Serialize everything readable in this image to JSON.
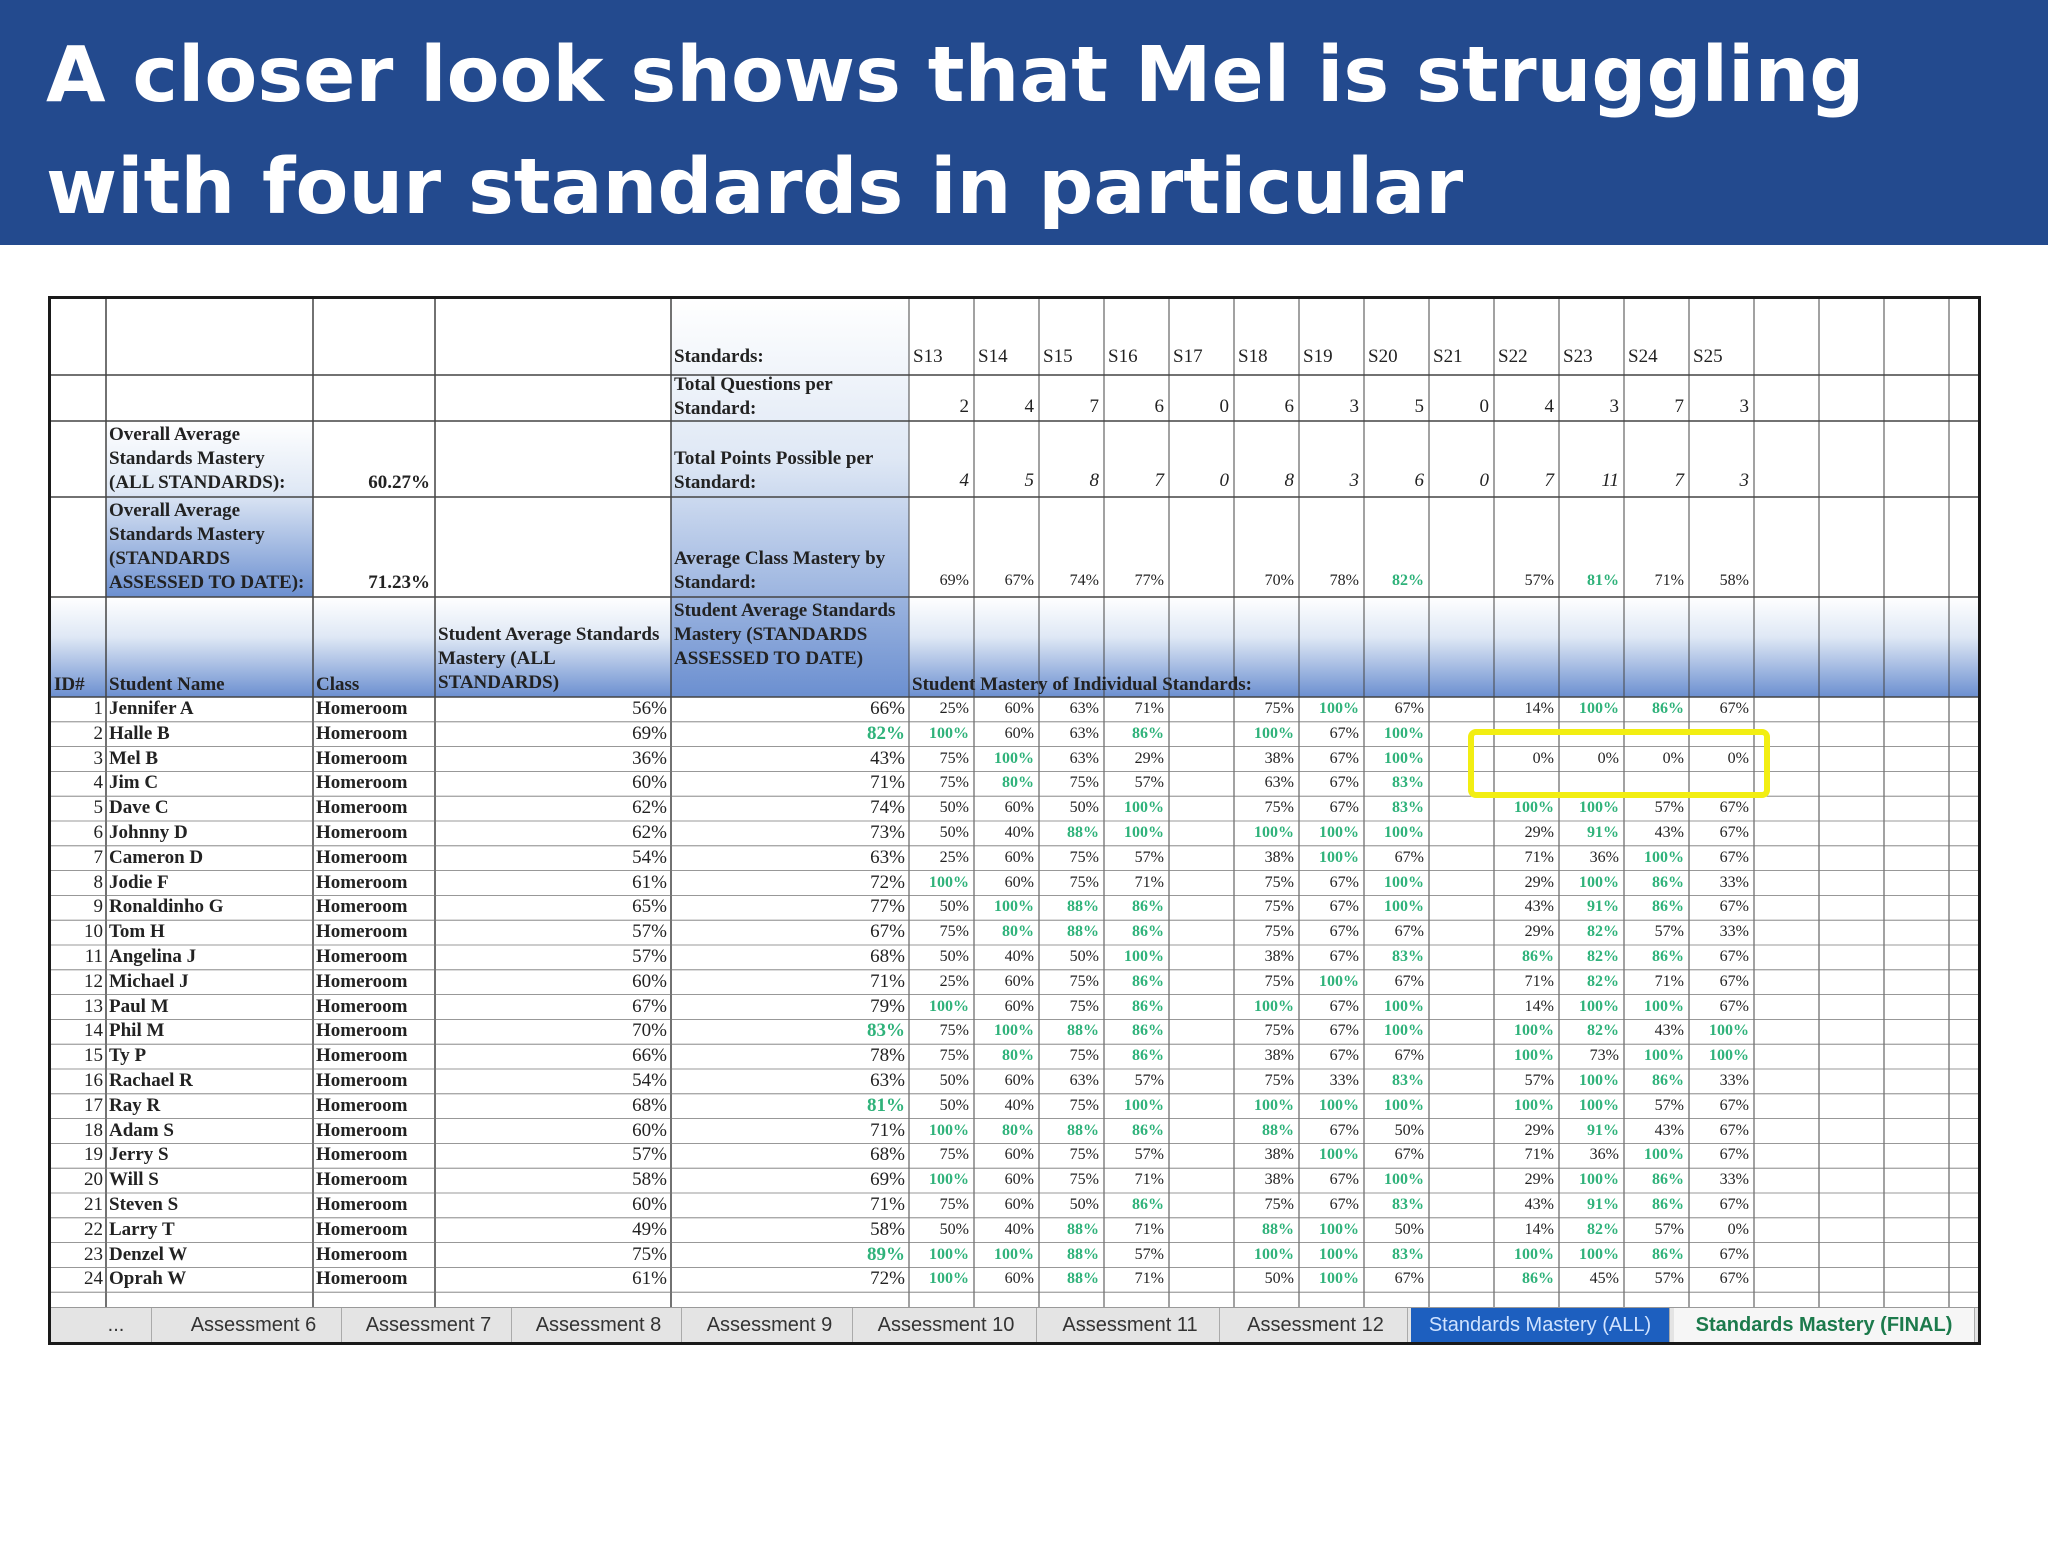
{
  "banner": {
    "title": "A closer look shows that Mel is struggling with four standards in particular"
  },
  "sheet": {
    "summary": {
      "overall_all_label": "Overall Average Standards Mastery (ALL STANDARDS):",
      "overall_all_value": "60.27%",
      "overall_date_label": "Overall Average Standards Mastery (STANDARDS ASSESSED TO DATE):",
      "overall_date_value": "71.23%"
    },
    "row_labels": {
      "standards": "Standards:",
      "total_questions": "Total Questions per Standard:",
      "total_points": "Total Points Possible per Standard:",
      "avg_class": "Average Class Mastery by Standard:"
    },
    "standards": [
      "S13",
      "S14",
      "S15",
      "S16",
      "S17",
      "S18",
      "S19",
      "S20",
      "S21",
      "S22",
      "S23",
      "S24",
      "S25"
    ],
    "total_questions": [
      "2",
      "4",
      "7",
      "6",
      "0",
      "6",
      "3",
      "5",
      "0",
      "4",
      "3",
      "7",
      "3"
    ],
    "total_points": [
      "4",
      "5",
      "8",
      "7",
      "0",
      "8",
      "3",
      "6",
      "0",
      "7",
      "11",
      "7",
      "3"
    ],
    "class_mastery": [
      "69%",
      "67%",
      "74%",
      "77%",
      "",
      "70%",
      "78%",
      "82%",
      "",
      "57%",
      "81%",
      "71%",
      "58%"
    ],
    "headers": {
      "id": "ID#",
      "name": "Student Name",
      "class": "Class",
      "avg_all": "Student Average Standards Mastery (ALL STANDARDS)",
      "avg_date": "Student Average Standards Mastery (STANDARDS ASSESSED TO DATE)",
      "mastery": "Student Mastery of Individual Standards:"
    },
    "students": [
      {
        "id": "1",
        "name": "Jennifer A",
        "class": "Homeroom",
        "avg_all": "56%",
        "avg_date": "66%",
        "scores": [
          "25%",
          "60%",
          "63%",
          "71%",
          "",
          "75%",
          "100%",
          "67%",
          "",
          "14%",
          "100%",
          "86%",
          "67%"
        ]
      },
      {
        "id": "2",
        "name": "Halle B",
        "class": "Homeroom",
        "avg_all": "69%",
        "avg_date": "82%",
        "scores": [
          "100%",
          "60%",
          "63%",
          "86%",
          "",
          "100%",
          "67%",
          "100%",
          "",
          "",
          "",
          "",
          ""
        ]
      },
      {
        "id": "3",
        "name": "Mel B",
        "class": "Homeroom",
        "avg_all": "36%",
        "avg_date": "43%",
        "scores": [
          "75%",
          "100%",
          "63%",
          "29%",
          "",
          "38%",
          "67%",
          "100%",
          "",
          "0%",
          "0%",
          "0%",
          "0%"
        ]
      },
      {
        "id": "4",
        "name": "Jim C",
        "class": "Homeroom",
        "avg_all": "60%",
        "avg_date": "71%",
        "scores": [
          "75%",
          "80%",
          "75%",
          "57%",
          "",
          "63%",
          "67%",
          "83%",
          "",
          "",
          "",
          "",
          ""
        ]
      },
      {
        "id": "5",
        "name": "Dave C",
        "class": "Homeroom",
        "avg_all": "62%",
        "avg_date": "74%",
        "scores": [
          "50%",
          "60%",
          "50%",
          "100%",
          "",
          "75%",
          "67%",
          "83%",
          "",
          "100%",
          "100%",
          "57%",
          "67%"
        ]
      },
      {
        "id": "6",
        "name": "Johnny D",
        "class": "Homeroom",
        "avg_all": "62%",
        "avg_date": "73%",
        "scores": [
          "50%",
          "40%",
          "88%",
          "100%",
          "",
          "100%",
          "100%",
          "100%",
          "",
          "29%",
          "91%",
          "43%",
          "67%"
        ]
      },
      {
        "id": "7",
        "name": "Cameron D",
        "class": "Homeroom",
        "avg_all": "54%",
        "avg_date": "63%",
        "scores": [
          "25%",
          "60%",
          "75%",
          "57%",
          "",
          "38%",
          "100%",
          "67%",
          "",
          "71%",
          "36%",
          "100%",
          "67%"
        ]
      },
      {
        "id": "8",
        "name": "Jodie F",
        "class": "Homeroom",
        "avg_all": "61%",
        "avg_date": "72%",
        "scores": [
          "100%",
          "60%",
          "75%",
          "71%",
          "",
          "75%",
          "67%",
          "100%",
          "",
          "29%",
          "100%",
          "86%",
          "33%"
        ]
      },
      {
        "id": "9",
        "name": "Ronaldinho G",
        "class": "Homeroom",
        "avg_all": "65%",
        "avg_date": "77%",
        "scores": [
          "50%",
          "100%",
          "88%",
          "86%",
          "",
          "75%",
          "67%",
          "100%",
          "",
          "43%",
          "91%",
          "86%",
          "67%"
        ]
      },
      {
        "id": "10",
        "name": "Tom H",
        "class": "Homeroom",
        "avg_all": "57%",
        "avg_date": "67%",
        "scores": [
          "75%",
          "80%",
          "88%",
          "86%",
          "",
          "75%",
          "67%",
          "67%",
          "",
          "29%",
          "82%",
          "57%",
          "33%"
        ]
      },
      {
        "id": "11",
        "name": "Angelina J",
        "class": "Homeroom",
        "avg_all": "57%",
        "avg_date": "68%",
        "scores": [
          "50%",
          "40%",
          "50%",
          "100%",
          "",
          "38%",
          "67%",
          "83%",
          "",
          "86%",
          "82%",
          "86%",
          "67%"
        ]
      },
      {
        "id": "12",
        "name": "Michael J",
        "class": "Homeroom",
        "avg_all": "60%",
        "avg_date": "71%",
        "scores": [
          "25%",
          "60%",
          "75%",
          "86%",
          "",
          "75%",
          "100%",
          "67%",
          "",
          "71%",
          "82%",
          "71%",
          "67%"
        ]
      },
      {
        "id": "13",
        "name": "Paul M",
        "class": "Homeroom",
        "avg_all": "67%",
        "avg_date": "79%",
        "scores": [
          "100%",
          "60%",
          "75%",
          "86%",
          "",
          "100%",
          "67%",
          "100%",
          "",
          "14%",
          "100%",
          "100%",
          "67%"
        ]
      },
      {
        "id": "14",
        "name": "Phil M",
        "class": "Homeroom",
        "avg_all": "70%",
        "avg_date": "83%",
        "scores": [
          "75%",
          "100%",
          "88%",
          "86%",
          "",
          "75%",
          "67%",
          "100%",
          "",
          "100%",
          "82%",
          "43%",
          "100%"
        ]
      },
      {
        "id": "15",
        "name": "Ty P",
        "class": "Homeroom",
        "avg_all": "66%",
        "avg_date": "78%",
        "scores": [
          "75%",
          "80%",
          "75%",
          "86%",
          "",
          "38%",
          "67%",
          "67%",
          "",
          "100%",
          "73%",
          "100%",
          "100%"
        ]
      },
      {
        "id": "16",
        "name": "Rachael R",
        "class": "Homeroom",
        "avg_all": "54%",
        "avg_date": "63%",
        "scores": [
          "50%",
          "60%",
          "63%",
          "57%",
          "",
          "75%",
          "33%",
          "83%",
          "",
          "57%",
          "100%",
          "86%",
          "33%"
        ]
      },
      {
        "id": "17",
        "name": "Ray R",
        "class": "Homeroom",
        "avg_all": "68%",
        "avg_date": "81%",
        "scores": [
          "50%",
          "40%",
          "75%",
          "100%",
          "",
          "100%",
          "100%",
          "100%",
          "",
          "100%",
          "100%",
          "57%",
          "67%"
        ]
      },
      {
        "id": "18",
        "name": "Adam S",
        "class": "Homeroom",
        "avg_all": "60%",
        "avg_date": "71%",
        "scores": [
          "100%",
          "80%",
          "88%",
          "86%",
          "",
          "88%",
          "67%",
          "50%",
          "",
          "29%",
          "91%",
          "43%",
          "67%"
        ]
      },
      {
        "id": "19",
        "name": "Jerry S",
        "class": "Homeroom",
        "avg_all": "57%",
        "avg_date": "68%",
        "scores": [
          "75%",
          "60%",
          "75%",
          "57%",
          "",
          "38%",
          "100%",
          "67%",
          "",
          "71%",
          "36%",
          "100%",
          "67%"
        ]
      },
      {
        "id": "20",
        "name": "Will S",
        "class": "Homeroom",
        "avg_all": "58%",
        "avg_date": "69%",
        "scores": [
          "100%",
          "60%",
          "75%",
          "71%",
          "",
          "38%",
          "67%",
          "100%",
          "",
          "29%",
          "100%",
          "86%",
          "33%"
        ]
      },
      {
        "id": "21",
        "name": "Steven S",
        "class": "Homeroom",
        "avg_all": "60%",
        "avg_date": "71%",
        "scores": [
          "75%",
          "60%",
          "50%",
          "86%",
          "",
          "75%",
          "67%",
          "83%",
          "",
          "43%",
          "91%",
          "86%",
          "67%"
        ]
      },
      {
        "id": "22",
        "name": "Larry T",
        "class": "Homeroom",
        "avg_all": "49%",
        "avg_date": "58%",
        "scores": [
          "50%",
          "40%",
          "88%",
          "71%",
          "",
          "88%",
          "100%",
          "50%",
          "",
          "14%",
          "82%",
          "57%",
          "0%"
        ]
      },
      {
        "id": "23",
        "name": "Denzel W",
        "class": "Homeroom",
        "avg_all": "75%",
        "avg_date": "89%",
        "scores": [
          "100%",
          "100%",
          "88%",
          "57%",
          "",
          "100%",
          "100%",
          "83%",
          "",
          "100%",
          "100%",
          "86%",
          "67%"
        ]
      },
      {
        "id": "24",
        "name": "Oprah W",
        "class": "Homeroom",
        "avg_all": "61%",
        "avg_date": "72%",
        "scores": [
          "100%",
          "60%",
          "88%",
          "71%",
          "",
          "50%",
          "100%",
          "67%",
          "",
          "86%",
          "45%",
          "57%",
          "67%"
        ]
      }
    ],
    "tabs": [
      {
        "label": "..."
      },
      {
        "label": "Assessment 6"
      },
      {
        "label": "Assessment 7"
      },
      {
        "label": "Assessment 8"
      },
      {
        "label": "Assessment 9"
      },
      {
        "label": "Assessment 10"
      },
      {
        "label": "Assessment 11"
      },
      {
        "label": "Assessment 12"
      },
      {
        "label": "Standards Mastery (ALL)"
      },
      {
        "label": "Standards Mastery (FINAL)"
      }
    ],
    "colors": {
      "banner": "#234a8e",
      "mastery_high": "#2fb27a",
      "highlight": "#f2ee12",
      "active_tab": "#1d5fbf"
    }
  }
}
